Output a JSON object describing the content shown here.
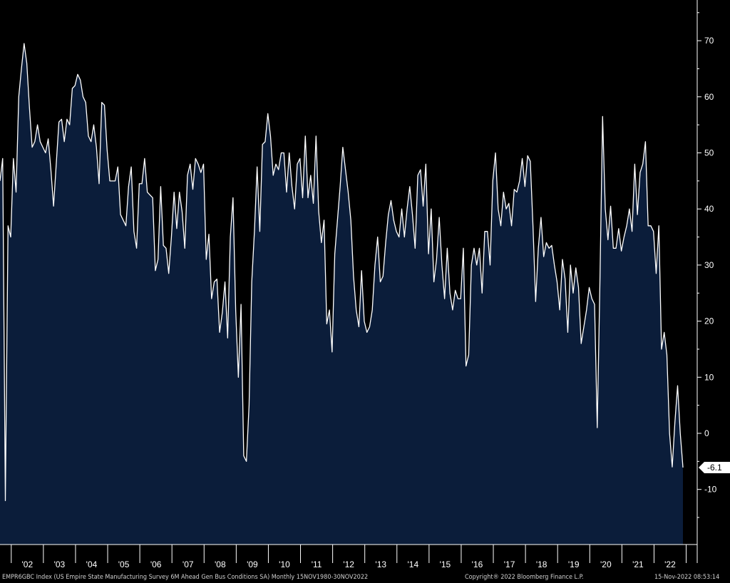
{
  "chart_data": {
    "type": "area",
    "title": "",
    "x_start": "2001-08",
    "frequency": "monthly",
    "xticks": [
      "'02",
      "'03",
      "'04",
      "'05",
      "'06",
      "'07",
      "'08",
      "'09",
      "'10",
      "'11",
      "'12",
      "'13",
      "'14",
      "'15",
      "'16",
      "'17",
      "'18",
      "'19",
      "'20",
      "'21",
      "'22"
    ],
    "yticks": [
      70,
      60,
      50,
      40,
      30,
      20,
      10,
      0,
      -10
    ],
    "ylim": [
      -19.5,
      77
    ],
    "last_value_label": "-6.1",
    "grid": false,
    "legend": "none",
    "values": [
      45,
      49,
      -12,
      37,
      35,
      49,
      43,
      60,
      65,
      69.5,
      66,
      58,
      51,
      52,
      55,
      52,
      51,
      50,
      52.5,
      47,
      40.5,
      48,
      55.5,
      56,
      52,
      56,
      55,
      61.5,
      62,
      64,
      63,
      60,
      59,
      53,
      52,
      55,
      51,
      44.5,
      59,
      58.5,
      50.5,
      45,
      45,
      45,
      47.5,
      39,
      38,
      37,
      44,
      47.5,
      36,
      33,
      44.5,
      44.5,
      49,
      43,
      42.5,
      42,
      29,
      31,
      44,
      33.5,
      33,
      28.5,
      35,
      43,
      36.5,
      43,
      39.5,
      33,
      46,
      48,
      43.5,
      49,
      48,
      46.5,
      48,
      31,
      35.5,
      24,
      27,
      27.5,
      18,
      21.5,
      27,
      17,
      35,
      42,
      22,
      10,
      23,
      -4,
      -5,
      5,
      27,
      36,
      47.5,
      36,
      51.5,
      52,
      57,
      53,
      46,
      48,
      47,
      50,
      50,
      43,
      50,
      44,
      40,
      48,
      49,
      42,
      53,
      42,
      46,
      41,
      53,
      39.5,
      34,
      38,
      19.5,
      22,
      14.5,
      32,
      38,
      44,
      51,
      47,
      43,
      38,
      28,
      22,
      19,
      29,
      20,
      18,
      19,
      22,
      30,
      35,
      27,
      28,
      34,
      39,
      41.5,
      38,
      36,
      35,
      40,
      35,
      40,
      44,
      39,
      33,
      46,
      47,
      40.5,
      48,
      32,
      40,
      27,
      31,
      38.5,
      30,
      24,
      33,
      25,
      22,
      25.5,
      24,
      24,
      33,
      12,
      14,
      30,
      33,
      30,
      33,
      25,
      36,
      36,
      30,
      45,
      50,
      40,
      37,
      43,
      40,
      41,
      37,
      43.5,
      43,
      45,
      49,
      44,
      49.5,
      48.5,
      37,
      23.5,
      33,
      38.5,
      31.5,
      34,
      33,
      33.5,
      30,
      27,
      22,
      31,
      27.5,
      18,
      30,
      25,
      29.5,
      26,
      16,
      19,
      22,
      26,
      24,
      23,
      1,
      27,
      56.5,
      40,
      34.5,
      40.5,
      33,
      33,
      36.5,
      32.5,
      35,
      37,
      40,
      36,
      48,
      39,
      46.5,
      48,
      52,
      37,
      37,
      36,
      28.5,
      37,
      15,
      18,
      14,
      0,
      -6,
      2,
      8.5,
      0,
      -6.1
    ]
  },
  "footer": {
    "left": "EMPR6GBC Index (US Empire State Manufacturing Survey 6M Ahead Gen Bus Conditions SA)  Monthly 15NOV1980-30NOV2022",
    "center": "Copyright® 2022 Bloomberg Finance L.P.",
    "right": "15-Nov-2022 08:53:14"
  },
  "colors": {
    "background": "#000000",
    "area_fill": "#0b1d3a",
    "line": "#ffffff",
    "label_box": "#ffffff"
  }
}
